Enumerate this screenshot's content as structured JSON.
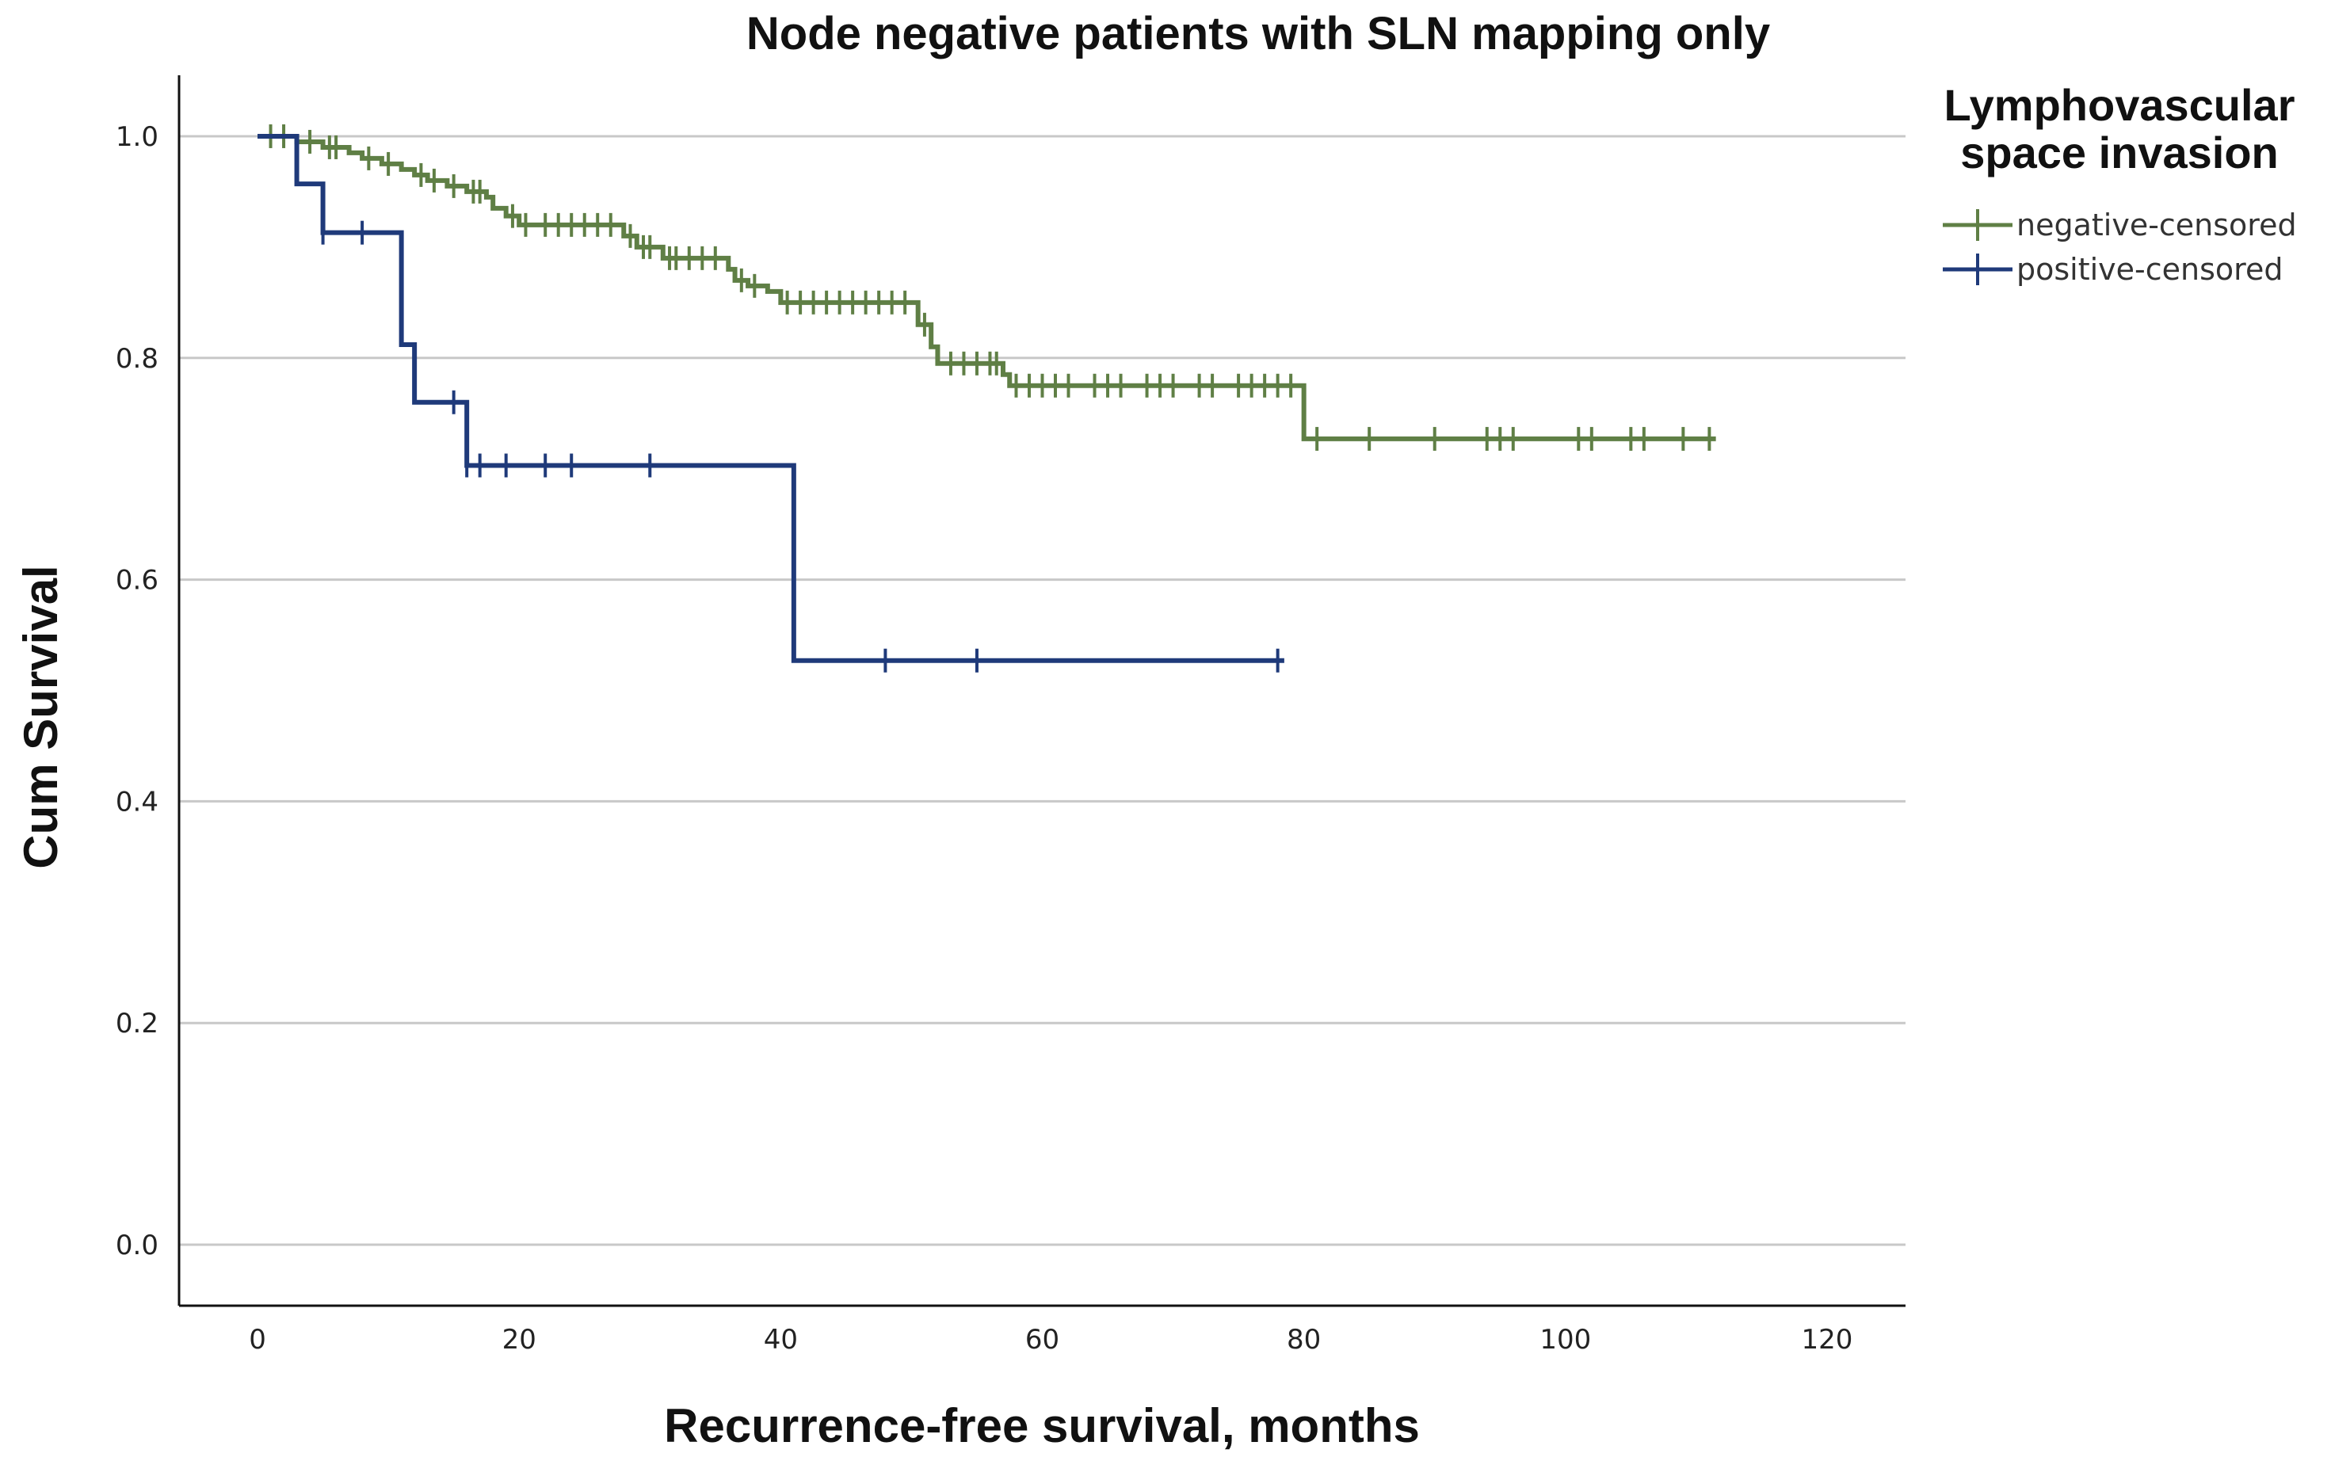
{
  "chart_data": {
    "type": "line",
    "subtype": "kaplan-meier",
    "title": "Node negative patients with SLN mapping only",
    "xlabel": "Recurrence-free survival, months",
    "ylabel": "Cum Survival",
    "xlim": [
      -6,
      126
    ],
    "ylim": [
      -0.055,
      1.055
    ],
    "xticks": [
      0,
      20,
      40,
      60,
      80,
      100,
      120
    ],
    "xtick_labels": [
      "0",
      "20",
      "40",
      "60",
      "80",
      "100",
      "120"
    ],
    "yticks": [
      0.0,
      0.2,
      0.4,
      0.6,
      0.8,
      1.0
    ],
    "ytick_labels": [
      "0.0",
      "0.2",
      "0.4",
      "0.6",
      "0.8",
      "1.0"
    ],
    "grid": "horizontal",
    "legend": {
      "title": "Lymphovascular space invasion",
      "title_lines": [
        "Lymphovascular",
        "space invasion"
      ],
      "position": "top-right, outside plot"
    },
    "series": [
      {
        "name": "negative-censored",
        "color": "#5f7f45",
        "steps": [
          [
            0,
            1.0
          ],
          [
            3,
            0.995
          ],
          [
            5,
            0.99
          ],
          [
            7,
            0.985
          ],
          [
            8,
            0.98
          ],
          [
            9.5,
            0.975
          ],
          [
            11,
            0.97
          ],
          [
            12,
            0.965
          ],
          [
            13,
            0.96
          ],
          [
            14.5,
            0.955
          ],
          [
            16,
            0.95
          ],
          [
            17.5,
            0.945
          ],
          [
            18,
            0.935
          ],
          [
            19,
            0.928
          ],
          [
            20,
            0.92
          ],
          [
            28,
            0.91
          ],
          [
            29,
            0.9
          ],
          [
            31,
            0.89
          ],
          [
            36,
            0.88
          ],
          [
            36.5,
            0.87
          ],
          [
            37.5,
            0.865
          ],
          [
            39,
            0.86
          ],
          [
            40,
            0.85
          ],
          [
            50.5,
            0.83
          ],
          [
            51.5,
            0.81
          ],
          [
            52,
            0.795
          ],
          [
            57,
            0.785
          ],
          [
            57.5,
            0.775
          ],
          [
            80,
            0.727
          ]
        ],
        "end_x": 111.5,
        "censored": [
          1,
          2,
          4,
          5.5,
          6,
          8.5,
          10,
          12.5,
          13.5,
          15,
          16.5,
          17,
          19.5,
          20.5,
          22,
          23,
          24,
          25,
          26,
          27,
          28.5,
          29.5,
          30,
          31.5,
          32,
          33,
          34,
          35,
          37,
          38,
          40.5,
          41.5,
          42.5,
          43.5,
          44.5,
          45.5,
          46.5,
          47.5,
          48.5,
          49.5,
          51,
          53,
          54,
          55,
          56,
          56.5,
          58,
          59,
          60,
          61,
          62,
          64,
          65,
          66,
          68,
          69,
          70,
          72,
          73,
          75,
          76,
          77,
          78,
          79,
          81,
          85,
          90,
          94,
          95,
          96,
          101,
          102,
          105,
          106,
          109,
          111
        ]
      },
      {
        "name": "positive-censored",
        "color": "#1f3a7a",
        "steps": [
          [
            0,
            1.0
          ],
          [
            3,
            0.957
          ],
          [
            5,
            0.913
          ],
          [
            11,
            0.812
          ],
          [
            12,
            0.76
          ],
          [
            16,
            0.703
          ],
          [
            41,
            0.527
          ]
        ],
        "end_x": 78.5,
        "censored": [
          5,
          8,
          15,
          16,
          17,
          19,
          22,
          24,
          30,
          48,
          55,
          78
        ]
      }
    ]
  }
}
